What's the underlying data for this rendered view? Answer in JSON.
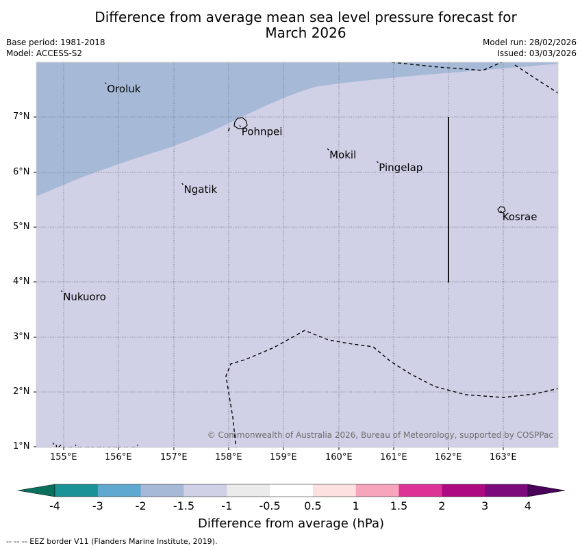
{
  "title_line1": "Difference from average mean sea level pressure forecast for",
  "title_line2": "March 2026",
  "meta_left": {
    "base_period": "Base period: 1981-2018",
    "model": "Model: ACCESS-S2"
  },
  "meta_right": {
    "model_run": "Model run: 28/02/2026",
    "issued": "Issued: 03/03/2026"
  },
  "lat_labels": [
    "7°N",
    "6°N",
    "5°N",
    "4°N",
    "3°N",
    "2°N",
    "1°N"
  ],
  "lon_labels": [
    "155°E",
    "156°E",
    "157°E",
    "158°E",
    "159°E",
    "160°E",
    "161°E",
    "162°E",
    "163°E"
  ],
  "places": [
    {
      "name": "Oroluk",
      "lon": 155.75,
      "lat": 7.63
    },
    {
      "name": "Pohnpei",
      "lon": 158.2,
      "lat": 6.85
    },
    {
      "name": "Mokil",
      "lon": 159.8,
      "lat": 6.43
    },
    {
      "name": "Pingelap",
      "lon": 160.7,
      "lat": 6.2
    },
    {
      "name": "Ngatik",
      "lon": 157.15,
      "lat": 5.8
    },
    {
      "name": "Kosrae",
      "lon": 162.95,
      "lat": 5.3
    },
    {
      "name": "Nukuoro",
      "lon": 154.95,
      "lat": 3.85
    },
    {
      "name": "Kapingamarangi",
      "lon": 154.8,
      "lat": 1.08
    }
  ],
  "copyright": "© Commonwealth of Australia 2026, Bureau of Meteorology, supported by COSPPac",
  "colorbar": {
    "title": "Difference from average (hPa)",
    "tick_labels": [
      "-4",
      "-3",
      "-2",
      "-1.5",
      "-1",
      "-0.5",
      "0.5",
      "1",
      "1.5",
      "2",
      "3",
      "4"
    ],
    "colors": [
      "#1a9296",
      "#5fa8cf",
      "#a6bad8",
      "#d0d0e6",
      "#ebebeb",
      "#ffffff",
      "#fde0e0",
      "#f7a4bd",
      "#dd3397",
      "#ad0a82",
      "#7c0a7d"
    ],
    "under_color": "#09705e",
    "over_color": "#4a0159"
  },
  "map_data": {
    "lon_range": [
      154.5,
      164.0
    ],
    "lat_range": [
      1.0,
      8.0
    ],
    "field_levels": {
      "background": "-1 to -1.5 hPa",
      "upper_left": "-1.5 to -2 hPa"
    },
    "colors": {
      "band_low": "#a6bad8",
      "band_mid": "#d0d0e6"
    }
  },
  "footer": "--  --  -- EEZ border V11 (Flanders Marine Institute, 2019)."
}
